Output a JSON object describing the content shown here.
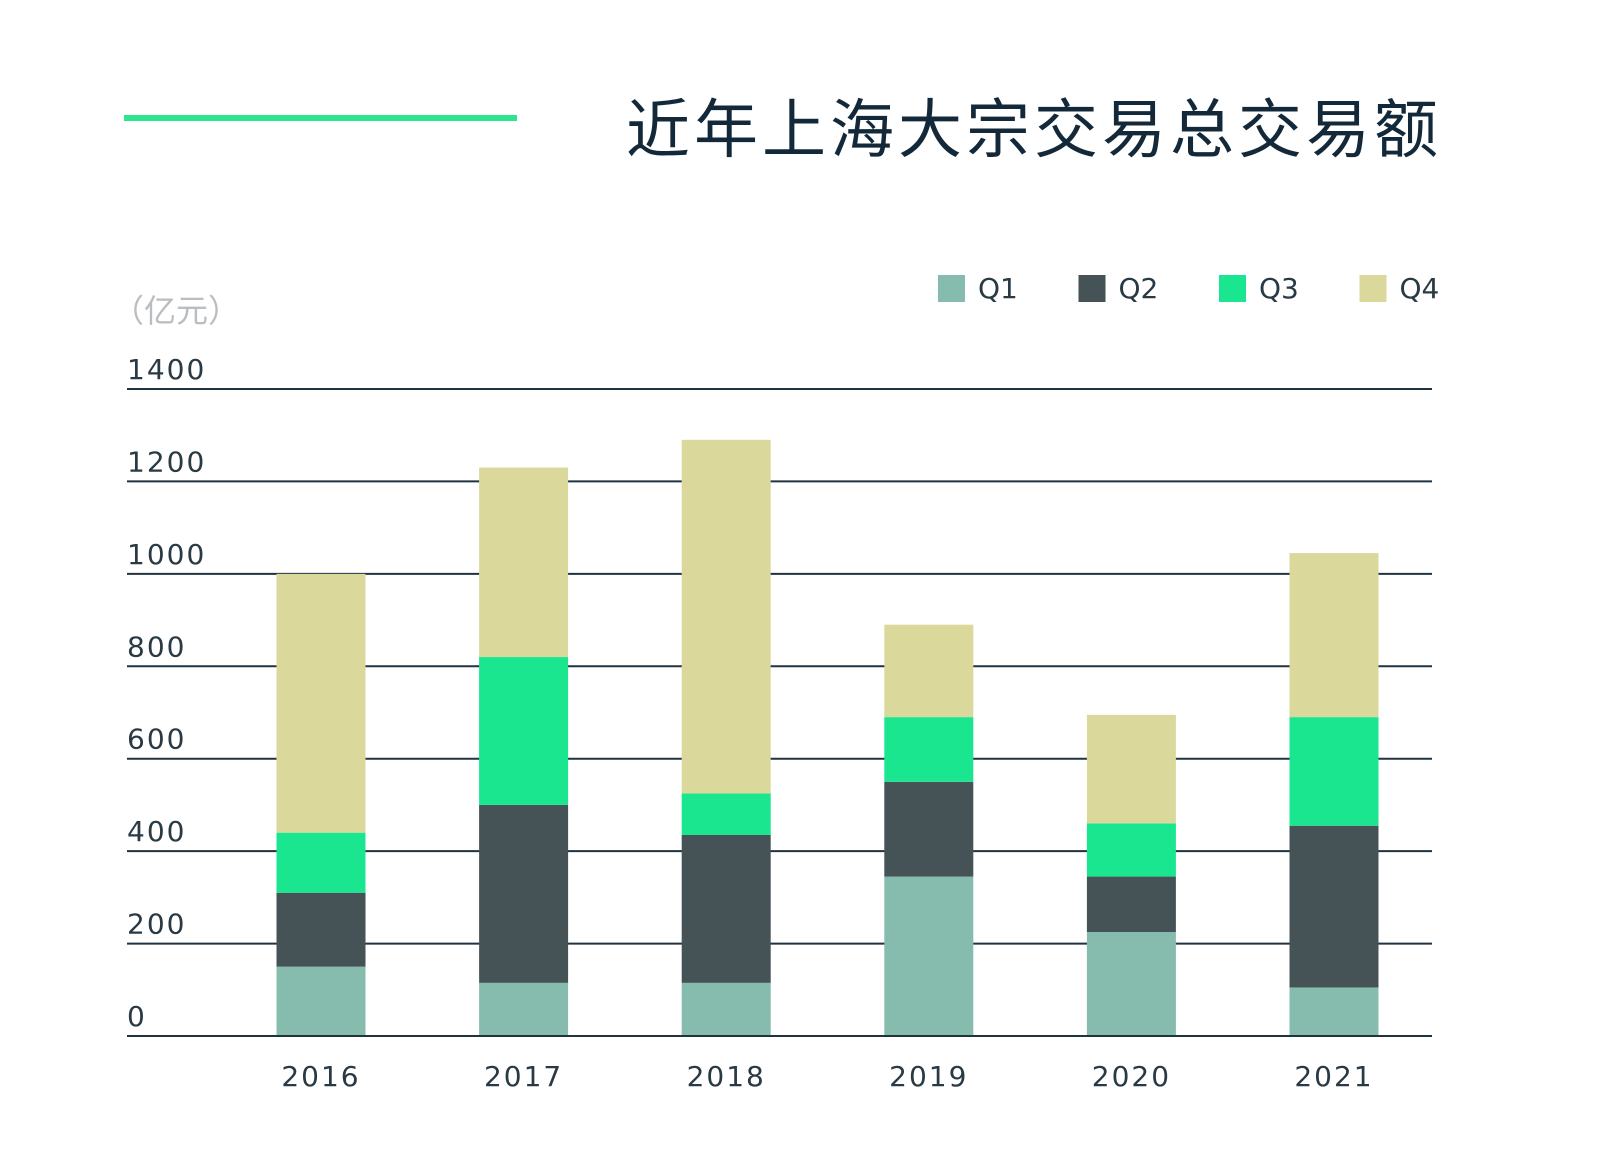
{
  "chart_data": {
    "type": "bar",
    "stacked": true,
    "title": "近年上海大宗交易总交易额",
    "ylabel": "（亿元）",
    "xlabel": "",
    "categories": [
      "2016",
      "2017",
      "2018",
      "2019",
      "2020",
      "2021"
    ],
    "series": [
      {
        "name": "Q1",
        "color": "#86bcae",
        "values": [
          150,
          115,
          115,
          345,
          225,
          105
        ]
      },
      {
        "name": "Q2",
        "color": "#455357",
        "values": [
          160,
          385,
          320,
          205,
          120,
          350
        ]
      },
      {
        "name": "Q3",
        "color": "#19e68f",
        "values": [
          130,
          320,
          90,
          140,
          115,
          235
        ]
      },
      {
        "name": "Q4",
        "color": "#dbd89c",
        "values": [
          560,
          410,
          765,
          200,
          235,
          355
        ]
      }
    ],
    "ylim": [
      0,
      1400
    ],
    "yticks": [
      0,
      200,
      400,
      600,
      800,
      1000,
      1200,
      1400
    ],
    "grid": true,
    "legend_position": "top-right",
    "accent_color": "#2ee58f"
  }
}
